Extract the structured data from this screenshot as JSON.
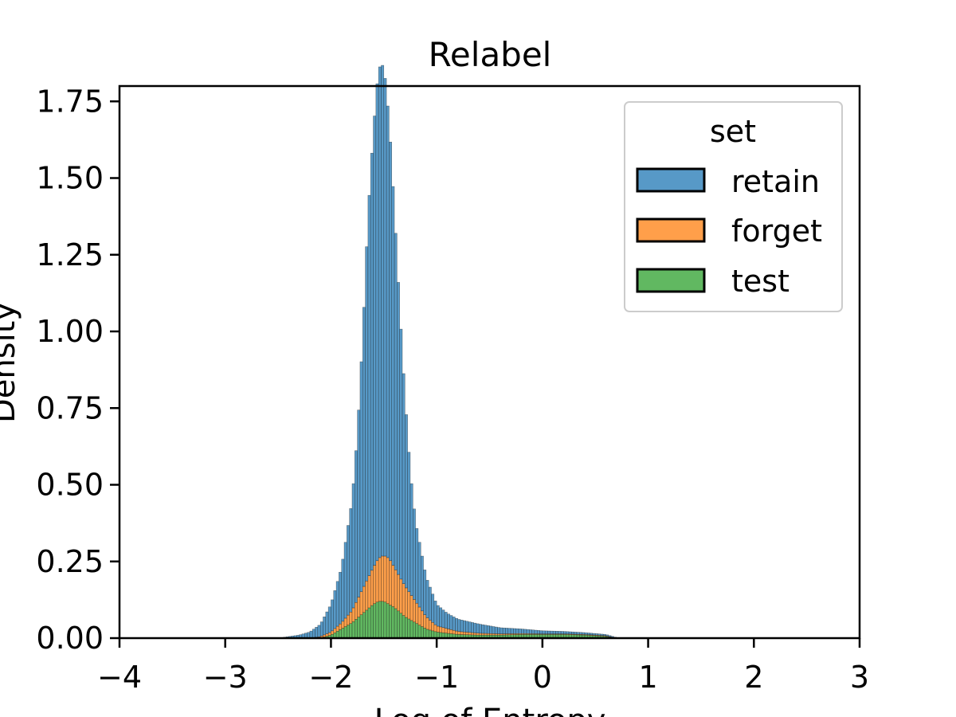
{
  "chart_data": {
    "type": "histogram",
    "title": "Relabel",
    "xlabel": "Log of Entropy",
    "ylabel": "Density",
    "xlim": [
      -4,
      3
    ],
    "ylim": [
      0,
      1.8
    ],
    "x_ticks": [
      -4,
      -3,
      -2,
      -1,
      0,
      1,
      2,
      3
    ],
    "x_tick_labels": [
      "−4",
      "−3",
      "−2",
      "−1",
      "0",
      "1",
      "2",
      "3"
    ],
    "y_ticks": [
      0,
      0.25,
      0.5,
      0.75,
      1.0,
      1.25,
      1.5,
      1.75
    ],
    "y_tick_labels": [
      "0.00",
      "0.25",
      "0.50",
      "0.75",
      "1.00",
      "1.25",
      "1.50",
      "1.75"
    ],
    "stacked": true,
    "grid": false,
    "legend": {
      "title": "set",
      "position": "top-right"
    },
    "series": [
      {
        "name": "retain",
        "color": "#1f77b4",
        "x": [
          -2.5,
          -2.4,
          -2.3,
          -2.2,
          -2.1,
          -2.0,
          -1.9,
          -1.8,
          -1.75,
          -1.7,
          -1.65,
          -1.6,
          -1.55,
          -1.5,
          -1.45,
          -1.4,
          -1.35,
          -1.3,
          -1.25,
          -1.2,
          -1.1,
          -1.0,
          -0.9,
          -0.8,
          -0.6,
          -0.4,
          -0.2,
          0.0,
          0.2,
          0.4,
          0.6,
          0.7,
          0.75
        ],
        "y": [
          0.0,
          0.005,
          0.01,
          0.02,
          0.04,
          0.09,
          0.18,
          0.36,
          0.54,
          0.82,
          1.18,
          1.42,
          1.6,
          1.6,
          1.43,
          1.17,
          0.88,
          0.62,
          0.4,
          0.26,
          0.13,
          0.07,
          0.05,
          0.04,
          0.03,
          0.02,
          0.015,
          0.01,
          0.008,
          0.006,
          0.004,
          0.002,
          0.0
        ]
      },
      {
        "name": "forget",
        "color": "#ff7f0e",
        "x": [
          -2.2,
          -2.1,
          -2.0,
          -1.9,
          -1.8,
          -1.7,
          -1.6,
          -1.55,
          -1.5,
          -1.45,
          -1.4,
          -1.3,
          -1.2,
          -1.1,
          -1.0,
          -0.8,
          -0.6,
          -0.4,
          -0.2,
          0.0,
          0.3,
          0.6,
          0.7
        ],
        "y": [
          0.0,
          0.005,
          0.01,
          0.02,
          0.04,
          0.08,
          0.12,
          0.14,
          0.15,
          0.15,
          0.13,
          0.1,
          0.07,
          0.04,
          0.02,
          0.01,
          0.006,
          0.004,
          0.003,
          0.002,
          0.002,
          0.002,
          0.0
        ]
      },
      {
        "name": "test",
        "color": "#2ca02c",
        "x": [
          -2.1,
          -2.0,
          -1.9,
          -1.8,
          -1.7,
          -1.6,
          -1.55,
          -1.5,
          -1.45,
          -1.4,
          -1.3,
          -1.2,
          -1.1,
          -1.0,
          -0.8,
          -0.6,
          -0.4,
          -0.2,
          0.0,
          0.2,
          0.4,
          0.6,
          0.7
        ],
        "y": [
          0.0,
          0.01,
          0.03,
          0.05,
          0.08,
          0.11,
          0.12,
          0.12,
          0.11,
          0.1,
          0.07,
          0.05,
          0.03,
          0.02,
          0.012,
          0.01,
          0.01,
          0.012,
          0.012,
          0.012,
          0.01,
          0.006,
          0.0
        ]
      }
    ]
  }
}
